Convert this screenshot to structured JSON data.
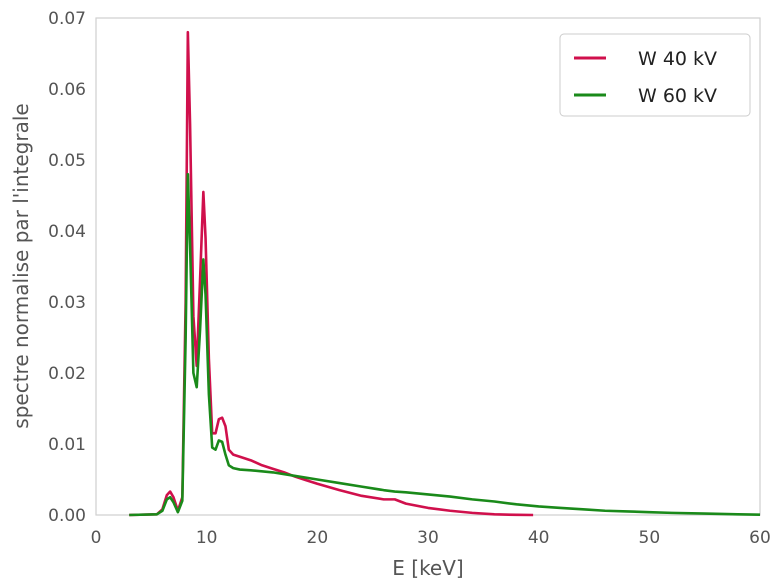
{
  "chart_data": {
    "type": "line",
    "title": "",
    "xlabel": "E [keV]",
    "ylabel": "spectre normalise par l'integrale",
    "xlim": [
      0,
      60
    ],
    "ylim": [
      0,
      0.07
    ],
    "x_ticks": [
      0,
      10,
      20,
      30,
      40,
      50,
      60
    ],
    "y_ticks": [
      0.0,
      0.01,
      0.02,
      0.03,
      0.04,
      0.05,
      0.06,
      0.07
    ],
    "x_tick_labels": [
      "0",
      "10",
      "20",
      "30",
      "40",
      "50",
      "60"
    ],
    "y_tick_labels": [
      "0.00",
      "0.01",
      "0.02",
      "0.03",
      "0.04",
      "0.05",
      "0.06",
      "0.07"
    ],
    "grid": false,
    "legend_position": "top-right",
    "series": [
      {
        "name": "W 40 kV",
        "color": "#d0104c",
        "x": [
          3,
          5.5,
          6,
          6.4,
          6.7,
          7,
          7.4,
          7.8,
          8.1,
          8.3,
          8.5,
          8.8,
          9.1,
          9.4,
          9.7,
          9.9,
          10.2,
          10.5,
          10.8,
          11.1,
          11.4,
          11.7,
          12,
          12.4,
          13,
          14,
          15,
          16,
          17,
          18,
          19,
          20,
          22,
          24,
          26,
          27,
          28,
          30,
          32,
          34,
          36,
          38,
          39.5
        ],
        "y": [
          0,
          0.0001,
          0.0008,
          0.0028,
          0.0033,
          0.0025,
          0.0006,
          0.0025,
          0.03,
          0.068,
          0.055,
          0.028,
          0.021,
          0.033,
          0.0455,
          0.039,
          0.022,
          0.0115,
          0.0115,
          0.0135,
          0.0137,
          0.0125,
          0.0092,
          0.0085,
          0.0082,
          0.0077,
          0.007,
          0.0065,
          0.006,
          0.0054,
          0.0049,
          0.0044,
          0.0035,
          0.0027,
          0.0022,
          0.0022,
          0.0016,
          0.001,
          0.0006,
          0.0003,
          0.0001,
          2e-05,
          0
        ]
      },
      {
        "name": "W 60 kV",
        "color": "#1a8a1a",
        "x": [
          3,
          5.5,
          6,
          6.4,
          6.7,
          7,
          7.4,
          7.8,
          8.1,
          8.3,
          8.5,
          8.8,
          9.1,
          9.4,
          9.7,
          9.9,
          10.2,
          10.5,
          10.8,
          11.1,
          11.4,
          11.7,
          12,
          12.4,
          13,
          14,
          16,
          18,
          20,
          22,
          24,
          26,
          27,
          28,
          30,
          32,
          34,
          36,
          38,
          40,
          42,
          44,
          46,
          48,
          50,
          52,
          55,
          58,
          60
        ],
        "y": [
          0,
          0.0001,
          0.0006,
          0.0022,
          0.0025,
          0.0018,
          0.0004,
          0.002,
          0.025,
          0.048,
          0.038,
          0.02,
          0.018,
          0.026,
          0.036,
          0.031,
          0.017,
          0.0095,
          0.0092,
          0.0105,
          0.0103,
          0.0085,
          0.007,
          0.0066,
          0.0064,
          0.0063,
          0.006,
          0.0055,
          0.005,
          0.0045,
          0.004,
          0.0035,
          0.0033,
          0.0032,
          0.0029,
          0.0026,
          0.0022,
          0.0019,
          0.0015,
          0.0012,
          0.001,
          0.0008,
          0.0006,
          0.0005,
          0.0004,
          0.0003,
          0.0002,
          0.0001,
          5e-05
        ]
      }
    ]
  }
}
